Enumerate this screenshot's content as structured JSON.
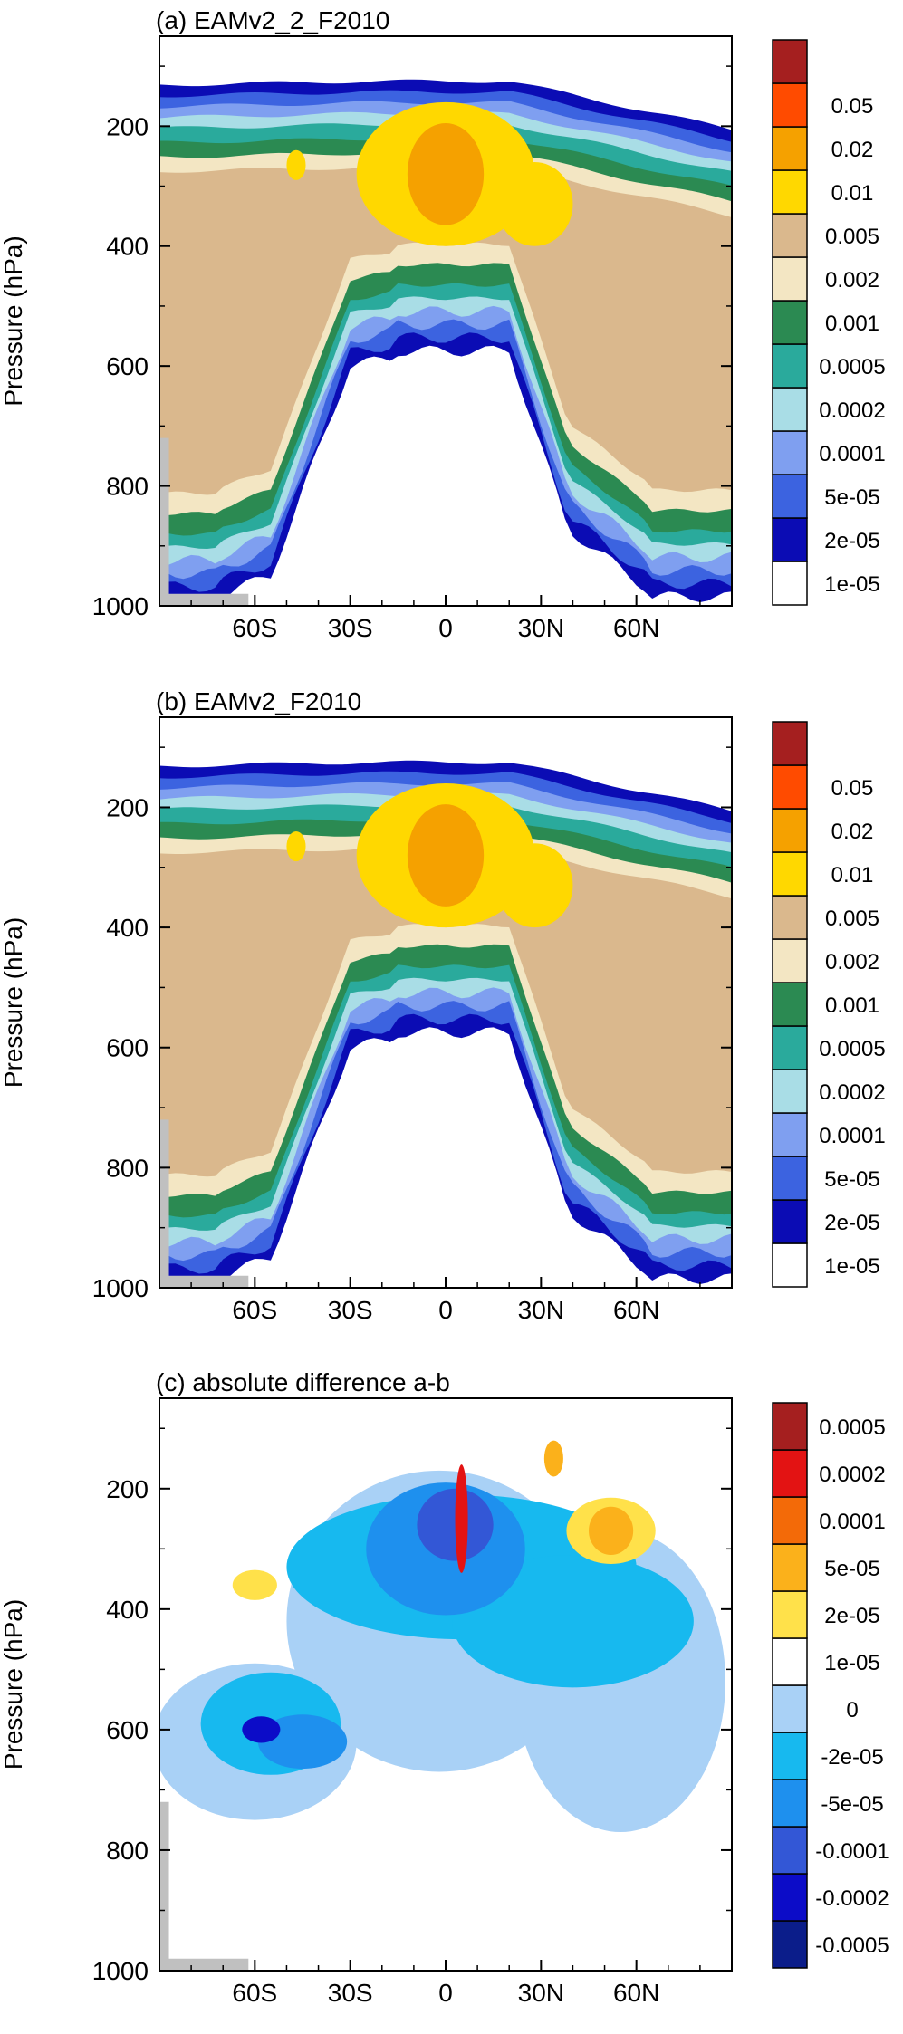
{
  "chart_data": [
    {
      "type": "heatmap",
      "title": "(a) EAMv2_2_F2010",
      "ylabel": "Pressure (hPa)",
      "y_ticks": [
        "200",
        "400",
        "600",
        "800",
        "1000"
      ],
      "x_ticks": [
        "60S",
        "30S",
        "0",
        "30N",
        "60N"
      ],
      "xlim": [
        -90,
        90
      ],
      "ylim": [
        1000,
        50
      ],
      "levels": [
        "1e-05",
        "2e-05",
        "5e-05",
        "0.0001",
        "0.0002",
        "0.0005",
        "0.001",
        "0.002",
        "0.005",
        "0.01",
        "0.02",
        "0.05"
      ],
      "colorbar_colors": [
        "#ffffff",
        "#0b0cb4",
        "#3c63e0",
        "#7f9ff0",
        "#a9dde6",
        "#2aaa9c",
        "#2b8a52",
        "#f3e6c3",
        "#dab88d",
        "#ffd800",
        "#f5a100",
        "#ff4b00",
        "#a51f1f"
      ]
    },
    {
      "type": "heatmap",
      "title": "(b) EAMv2_F2010",
      "ylabel": "Pressure (hPa)",
      "y_ticks": [
        "200",
        "400",
        "600",
        "800",
        "1000"
      ],
      "x_ticks": [
        "60S",
        "30S",
        "0",
        "30N",
        "60N"
      ],
      "xlim": [
        -90,
        90
      ],
      "ylim": [
        1000,
        50
      ],
      "levels": [
        "1e-05",
        "2e-05",
        "5e-05",
        "0.0001",
        "0.0002",
        "0.0005",
        "0.001",
        "0.002",
        "0.005",
        "0.01",
        "0.02",
        "0.05"
      ],
      "colorbar_colors": [
        "#ffffff",
        "#0b0cb4",
        "#3c63e0",
        "#7f9ff0",
        "#a9dde6",
        "#2aaa9c",
        "#2b8a52",
        "#f3e6c3",
        "#dab88d",
        "#ffd800",
        "#f5a100",
        "#ff4b00",
        "#a51f1f"
      ]
    },
    {
      "type": "heatmap",
      "title": "(c) absolute difference a-b",
      "ylabel": "Pressure (hPa)",
      "y_ticks": [
        "200",
        "400",
        "600",
        "800",
        "1000"
      ],
      "x_ticks": [
        "60S",
        "30S",
        "0",
        "30N",
        "60N"
      ],
      "xlim": [
        -90,
        90
      ],
      "ylim": [
        1000,
        50
      ],
      "levels": [
        "-0.0005",
        "-0.0002",
        "-0.0001",
        "-5e-05",
        "-2e-05",
        "0",
        "1e-05",
        "2e-05",
        "5e-05",
        "0.0001",
        "0.0002",
        "0.0005"
      ],
      "colorbar_colors": [
        "#0b1d8a",
        "#0c0cc8",
        "#3357d6",
        "#1e90ee",
        "#17b9ef",
        "#a9d1f6",
        "#ffffff",
        "#ffe14a",
        "#fbb11b",
        "#f36a08",
        "#e31313",
        "#a51f1f"
      ]
    }
  ]
}
